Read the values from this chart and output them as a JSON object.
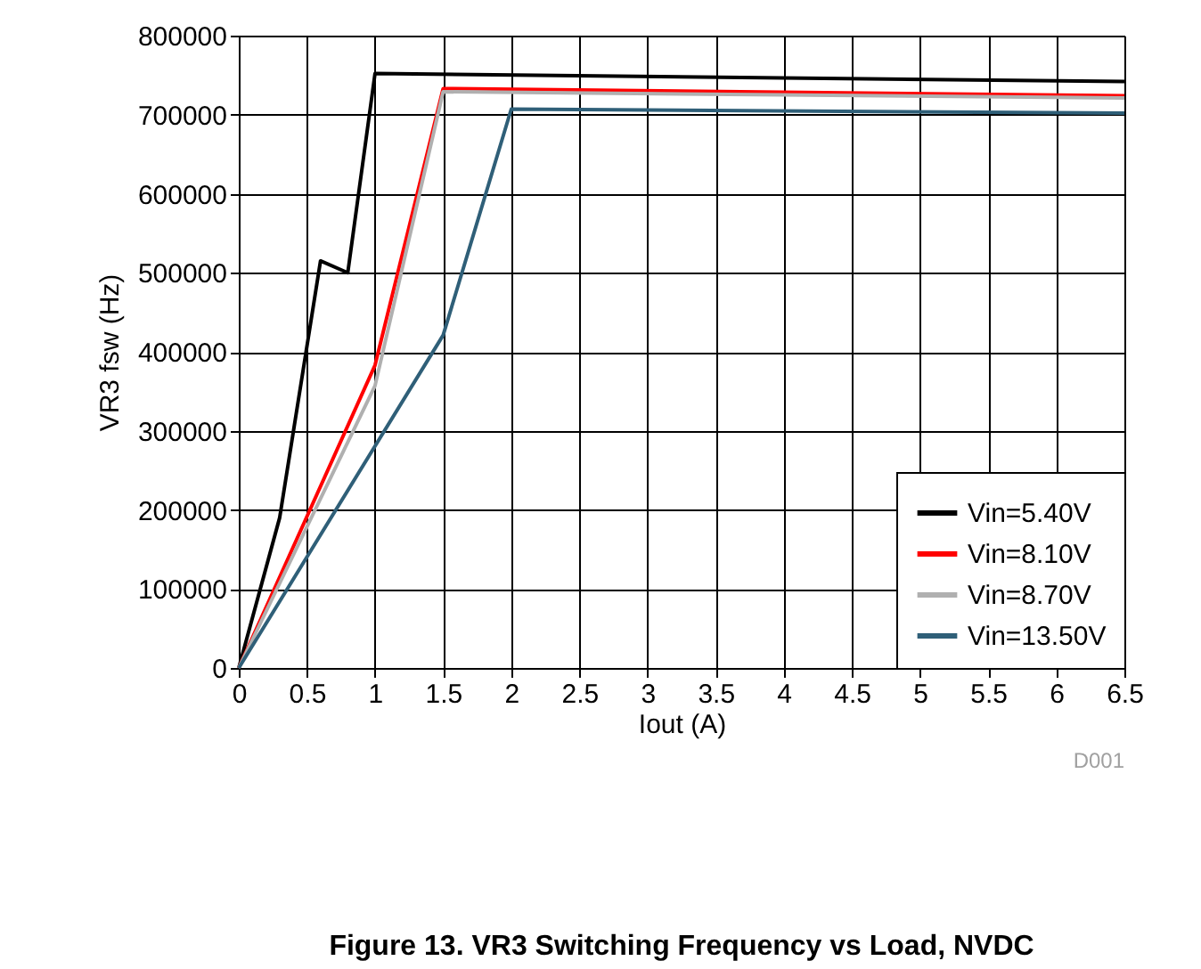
{
  "chart_data": {
    "type": "line",
    "title": "Figure 13. VR3 Switching Frequency vs Load, NVDC",
    "xlabel": "Iout (A)",
    "ylabel": "VR3 fsw (Hz)",
    "xlim": [
      0,
      6.5
    ],
    "xticks": [
      0,
      0.5,
      1,
      1.5,
      2,
      2.5,
      3,
      3.5,
      4,
      4.5,
      5,
      5.5,
      6,
      6.5
    ],
    "ylim": [
      0,
      800000
    ],
    "yticks": [
      0,
      100000,
      200000,
      300000,
      400000,
      500000,
      600000,
      700000,
      800000
    ],
    "grid": true,
    "legend": "bottom right",
    "marker": "none",
    "line_style": "solid",
    "annotations": [
      "D001"
    ],
    "series": [
      {
        "name": "Vin=5.40V",
        "color": "#000000",
        "x": [
          0,
          0.3,
          0.6,
          0.8,
          1.0,
          6.5
        ],
        "values": [
          0,
          190000,
          515000,
          500000,
          752000,
          742000
        ]
      },
      {
        "name": "Vin=8.10V",
        "color": "#ff0000",
        "x": [
          0,
          1.0,
          1.5,
          6.5
        ],
        "values": [
          0,
          383000,
          733000,
          724000
        ]
      },
      {
        "name": "Vin=8.70V",
        "color": "#b0b0b0",
        "x": [
          0,
          1.0,
          1.5,
          6.5
        ],
        "values": [
          0,
          357000,
          729000,
          721000
        ]
      },
      {
        "name": "Vin=13.50V",
        "color": "#2f5f78",
        "x": [
          0,
          1.5,
          2.0,
          6.5
        ],
        "values": [
          0,
          421000,
          707000,
          702000
        ]
      }
    ]
  }
}
